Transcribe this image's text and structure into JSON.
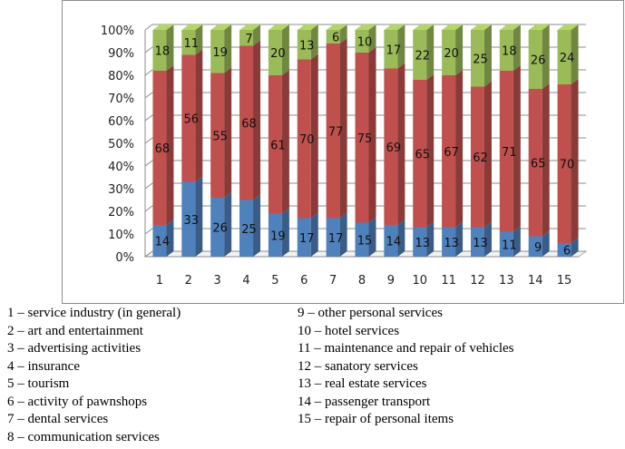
{
  "chart_data": {
    "type": "bar",
    "stacked": "percent",
    "categories": [
      "1",
      "2",
      "3",
      "4",
      "5",
      "6",
      "7",
      "8",
      "9",
      "10",
      "11",
      "12",
      "13",
      "14",
      "15"
    ],
    "series": [
      {
        "values": [
          14,
          33,
          26,
          25,
          19,
          17,
          17,
          15,
          14,
          13,
          13,
          13,
          11,
          9,
          6
        ],
        "color": "#4f81bd"
      },
      {
        "values": [
          68,
          56,
          55,
          68,
          61,
          70,
          77,
          75,
          69,
          65,
          67,
          62,
          71,
          65,
          70
        ],
        "color": "#c0504d"
      },
      {
        "values": [
          18,
          11,
          19,
          7,
          20,
          13,
          6,
          10,
          17,
          22,
          20,
          25,
          18,
          26,
          24
        ],
        "color": "#9bbb59"
      }
    ],
    "y_ticks": [
      "0%",
      "10%",
      "20%",
      "30%",
      "40%",
      "50%",
      "60%",
      "70%",
      "80%",
      "90%",
      "100%"
    ],
    "ylim": [
      0,
      100
    ],
    "grid": true
  },
  "legend": {
    "left": [
      "1 – service industry (in general)",
      "2 – art and entertainment",
      "3 – advertising activities",
      "4 – insurance",
      "5 – tourism",
      "6 – activity of pawnshops",
      "7 – dental services",
      "8 – communication services"
    ],
    "right": [
      "9 – other personal services",
      "10 – hotel services",
      "11 – maintenance and repair of vehicles",
      "12 – sanatory services",
      "13 – real estate services",
      "14 – passenger transport",
      "15 – repair of personal items"
    ]
  }
}
